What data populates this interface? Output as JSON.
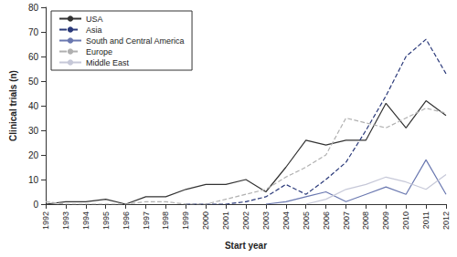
{
  "chart_data": {
    "type": "line",
    "x_label": "Start year",
    "y_label": "Clinical trials (n)",
    "categories": [
      "1992",
      "1993",
      "1994",
      "1995",
      "1996",
      "1997",
      "1998",
      "1999",
      "2000",
      "2001",
      "2002",
      "2003",
      "2004",
      "2005",
      "2006",
      "2007",
      "2008",
      "2009",
      "2010",
      "2011",
      "2012"
    ],
    "ylim": [
      0,
      80
    ],
    "yticks": [
      0,
      10,
      20,
      30,
      40,
      50,
      60,
      70,
      80
    ],
    "legend": "top-left",
    "grid": false,
    "series": [
      {
        "name": "USA",
        "color": "#333333",
        "line_style": "solid",
        "values": [
          0,
          1,
          1,
          2,
          0,
          3,
          3,
          6,
          8,
          8,
          10,
          5,
          15,
          26,
          24,
          26,
          26,
          41,
          31,
          42,
          36
        ]
      },
      {
        "name": "Asia",
        "color": "#2b3a7a",
        "line_style": "dashed",
        "values": [
          null,
          null,
          null,
          null,
          null,
          null,
          null,
          0,
          0,
          0,
          1,
          3,
          8,
          4,
          10,
          17,
          30,
          44,
          60,
          67,
          53
        ]
      },
      {
        "name": "South and Central America",
        "color": "#6a78b0",
        "line_style": "solid",
        "values": [
          null,
          null,
          null,
          null,
          null,
          null,
          null,
          null,
          null,
          null,
          null,
          0,
          1,
          3,
          5,
          1,
          4,
          7,
          4,
          18,
          4
        ]
      },
      {
        "name": "Europe",
        "color": "#b0b0b0",
        "line_style": "dashed",
        "values": [
          1,
          0,
          0,
          0,
          0,
          1,
          1,
          0,
          0,
          2,
          4,
          6,
          11,
          15,
          20,
          35,
          33,
          31,
          35,
          39,
          37
        ]
      },
      {
        "name": "Middle East",
        "color": "#c6c8d8",
        "line_style": "solid",
        "values": [
          null,
          null,
          null,
          null,
          null,
          null,
          null,
          null,
          null,
          null,
          null,
          null,
          null,
          0,
          2,
          6,
          8,
          11,
          9,
          6,
          12
        ]
      }
    ]
  }
}
